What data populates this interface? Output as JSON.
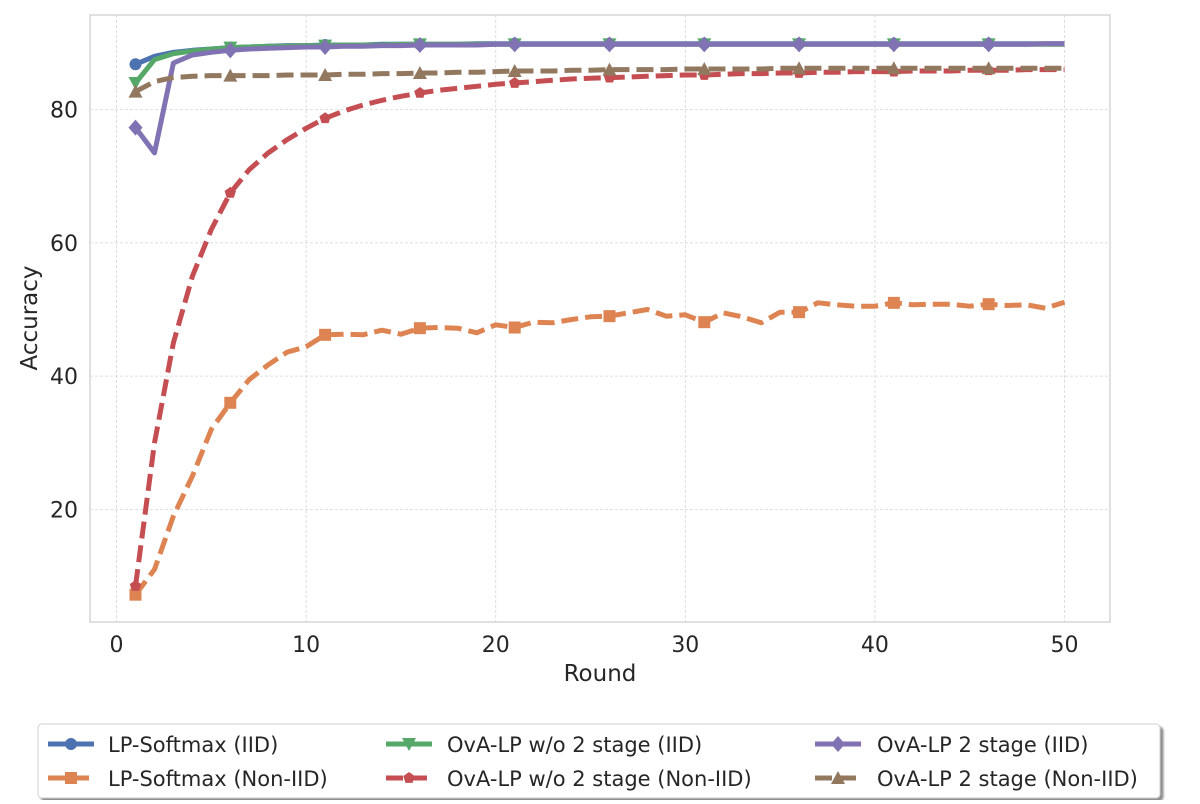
{
  "chart_data": {
    "type": "line",
    "title": "",
    "xlabel": "Round",
    "ylabel": "Accuracy",
    "xlim": [
      -1.4,
      52.4
    ],
    "ylim": [
      3.1,
      94.2
    ],
    "xticks": [
      0,
      10,
      20,
      30,
      40,
      50
    ],
    "yticks": [
      20,
      40,
      60,
      80
    ],
    "grid": true,
    "legend_placement": "bottom-outside",
    "marker_every": 5,
    "x": [
      1,
      2,
      3,
      4,
      5,
      6,
      7,
      8,
      9,
      10,
      11,
      12,
      13,
      14,
      15,
      16,
      17,
      18,
      19,
      20,
      21,
      22,
      23,
      24,
      25,
      26,
      27,
      28,
      29,
      30,
      31,
      32,
      33,
      34,
      35,
      36,
      37,
      38,
      39,
      40,
      41,
      42,
      43,
      44,
      45,
      46,
      47,
      48,
      49,
      50
    ],
    "series": [
      {
        "name": "LP-Softmax (IID)",
        "color": "#4c72b0",
        "style": "solid",
        "marker": "circle",
        "values": [
          86.8,
          88,
          88.6,
          88.9,
          89.1,
          89.3,
          89.4,
          89.5,
          89.6,
          89.6,
          89.7,
          89.7,
          89.7,
          89.8,
          89.8,
          89.8,
          89.8,
          89.8,
          89.9,
          89.9,
          89.9,
          89.9,
          89.9,
          89.9,
          89.9,
          89.9,
          89.9,
          89.9,
          89.9,
          89.9,
          89.9,
          89.9,
          89.9,
          89.9,
          89.9,
          89.9,
          89.9,
          89.9,
          89.9,
          89.9,
          89.9,
          89.9,
          89.9,
          89.9,
          89.9,
          89.9,
          89.9,
          89.9,
          89.9,
          89.9
        ]
      },
      {
        "name": "LP-Softmax (Non-IID)",
        "color": "#dd8452",
        "style": "dashed",
        "marker": "square",
        "values": [
          7.2,
          11,
          19,
          25,
          32,
          36,
          39.5,
          41.7,
          43.6,
          44.4,
          46.2,
          46.3,
          46.2,
          46.9,
          46.3,
          47.2,
          47.3,
          47.2,
          46.5,
          47.7,
          47.3,
          48.1,
          48,
          48.5,
          48.9,
          49,
          49.5,
          50,
          49,
          49.2,
          48.1,
          49.5,
          48.9,
          48,
          49.6,
          49.6,
          51,
          50.7,
          50.5,
          50.5,
          51,
          50.7,
          50.8,
          50.8,
          50.5,
          50.8,
          50.6,
          50.7,
          50.2,
          51.1
        ]
      },
      {
        "name": "OvA-LP w/o 2 stage (IID)",
        "color": "#55a868",
        "style": "solid",
        "marker": "triangle-down",
        "values": [
          84,
          87.5,
          88.4,
          88.8,
          89.1,
          89.3,
          89.4,
          89.5,
          89.5,
          89.6,
          89.6,
          89.7,
          89.7,
          89.7,
          89.8,
          89.8,
          89.8,
          89.8,
          89.8,
          89.8,
          89.8,
          89.8,
          89.8,
          89.8,
          89.8,
          89.8,
          89.8,
          89.8,
          89.8,
          89.8,
          89.8,
          89.8,
          89.8,
          89.8,
          89.8,
          89.8,
          89.8,
          89.8,
          89.8,
          89.8,
          89.8,
          89.8,
          89.8,
          89.8,
          89.8,
          89.8,
          89.8,
          89.8,
          89.8,
          89.8
        ]
      },
      {
        "name": "OvA-LP w/o 2 stage (Non-IID)",
        "color": "#c44e52",
        "style": "dashed",
        "marker": "pentagon",
        "values": [
          8.5,
          30,
          45,
          55,
          62,
          67.5,
          71,
          73.5,
          75.5,
          77.2,
          78.7,
          79.8,
          80.7,
          81.4,
          82,
          82.5,
          82.9,
          83.2,
          83.5,
          83.8,
          84,
          84.2,
          84.4,
          84.6,
          84.7,
          84.8,
          84.9,
          85,
          85.1,
          85.2,
          85.2,
          85.3,
          85.4,
          85.4,
          85.5,
          85.5,
          85.6,
          85.6,
          85.7,
          85.7,
          85.7,
          85.8,
          85.8,
          85.8,
          85.9,
          85.9,
          85.9,
          86,
          86,
          86
        ]
      },
      {
        "name": "OvA-LP 2 stage (IID)",
        "color": "#8172b3",
        "style": "solid",
        "marker": "diamond",
        "values": [
          77.3,
          73.5,
          87,
          88.2,
          88.6,
          88.9,
          89.1,
          89.2,
          89.3,
          89.4,
          89.4,
          89.5,
          89.5,
          89.6,
          89.6,
          89.7,
          89.7,
          89.7,
          89.7,
          89.8,
          89.8,
          89.8,
          89.8,
          89.8,
          89.8,
          89.8,
          89.8,
          89.8,
          89.8,
          89.8,
          89.8,
          89.8,
          89.8,
          89.8,
          89.8,
          89.8,
          89.8,
          89.8,
          89.8,
          89.8,
          89.8,
          89.8,
          89.8,
          89.8,
          89.8,
          89.8,
          89.8,
          89.8,
          89.9,
          89.9
        ]
      },
      {
        "name": "OvA-LP 2 stage (Non-IID)",
        "color": "#937860",
        "style": "dashed",
        "marker": "triangle-up",
        "values": [
          82.7,
          84.2,
          84.8,
          85,
          85.1,
          85.1,
          85.1,
          85.1,
          85.2,
          85.2,
          85.2,
          85.3,
          85.3,
          85.4,
          85.4,
          85.5,
          85.5,
          85.6,
          85.6,
          85.7,
          85.8,
          85.8,
          85.8,
          85.9,
          85.9,
          86,
          86,
          86,
          86,
          86.1,
          86.1,
          86.1,
          86.1,
          86.1,
          86.2,
          86.2,
          86.2,
          86.2,
          86.2,
          86.2,
          86.2,
          86.2,
          86.2,
          86.2,
          86.2,
          86.2,
          86.2,
          86.2,
          86.2,
          86.2
        ]
      }
    ]
  }
}
